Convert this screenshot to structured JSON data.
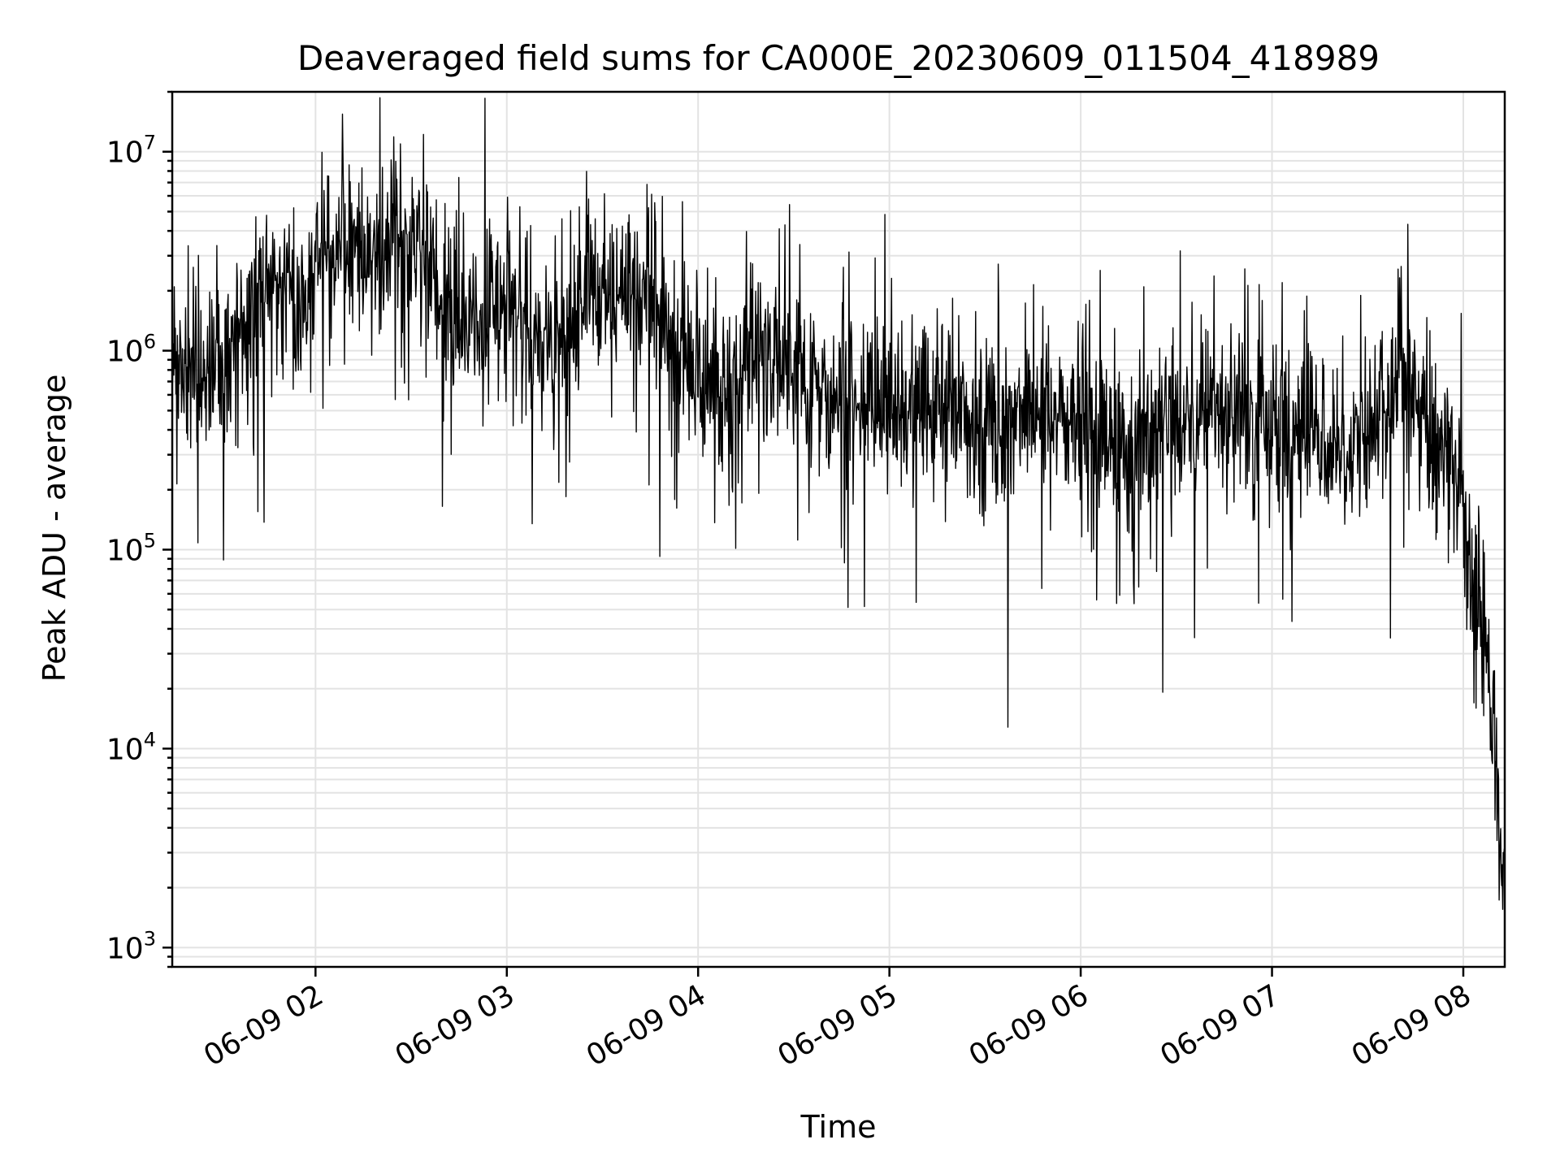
{
  "chart_data": {
    "type": "line",
    "title": "Deaveraged field sums for CA000E_20230609_011504_418989",
    "xlabel": "Time",
    "ylabel": "Peak ADU - average",
    "yscale": "log",
    "ylim": [
      800,
      20000000
    ],
    "xlim": [
      "2023-06-09 01:15:04",
      "2023-06-09 08:13:00"
    ],
    "grid": true,
    "line_color": "#000000",
    "x_ticks": [
      {
        "value": "2023-06-09 02:00",
        "label": "06-09 02"
      },
      {
        "value": "2023-06-09 03:00",
        "label": "06-09 03"
      },
      {
        "value": "2023-06-09 04:00",
        "label": "06-09 04"
      },
      {
        "value": "2023-06-09 05:00",
        "label": "06-09 05"
      },
      {
        "value": "2023-06-09 06:00",
        "label": "06-09 06"
      },
      {
        "value": "2023-06-09 07:00",
        "label": "06-09 07"
      },
      {
        "value": "2023-06-09 08:00",
        "label": "06-09 08"
      }
    ],
    "y_ticks": [
      {
        "value": 1000,
        "base": "10",
        "exp": "3"
      },
      {
        "value": 10000,
        "base": "10",
        "exp": "4"
      },
      {
        "value": 100000,
        "base": "10",
        "exp": "5"
      },
      {
        "value": 1000000,
        "base": "10",
        "exp": "6"
      },
      {
        "value": 10000000,
        "base": "10",
        "exp": "7"
      }
    ],
    "series": [
      {
        "x": [
          "2023-06-09 01:15",
          "2023-06-09 01:20",
          "2023-06-09 01:25",
          "2023-06-09 01:30",
          "2023-06-09 01:35",
          "2023-06-09 01:40",
          "2023-06-09 01:45",
          "2023-06-09 01:50",
          "2023-06-09 01:55",
          "2023-06-09 02:00",
          "2023-06-09 02:05",
          "2023-06-09 02:10",
          "2023-06-09 02:15",
          "2023-06-09 02:20",
          "2023-06-09 02:25",
          "2023-06-09 02:30",
          "2023-06-09 02:35",
          "2023-06-09 02:40",
          "2023-06-09 02:45",
          "2023-06-09 02:50",
          "2023-06-09 02:55",
          "2023-06-09 03:00",
          "2023-06-09 03:05",
          "2023-06-09 03:10",
          "2023-06-09 03:15",
          "2023-06-09 03:20",
          "2023-06-09 03:25",
          "2023-06-09 03:30",
          "2023-06-09 03:35",
          "2023-06-09 03:40",
          "2023-06-09 03:45",
          "2023-06-09 03:50",
          "2023-06-09 03:55",
          "2023-06-09 04:00",
          "2023-06-09 04:05",
          "2023-06-09 04:10",
          "2023-06-09 04:15",
          "2023-06-09 04:20",
          "2023-06-09 04:25",
          "2023-06-09 04:30",
          "2023-06-09 04:35",
          "2023-06-09 04:40",
          "2023-06-09 04:45",
          "2023-06-09 04:50",
          "2023-06-09 04:55",
          "2023-06-09 05:00",
          "2023-06-09 05:05",
          "2023-06-09 05:10",
          "2023-06-09 05:15",
          "2023-06-09 05:20",
          "2023-06-09 05:25",
          "2023-06-09 05:30",
          "2023-06-09 05:35",
          "2023-06-09 05:40",
          "2023-06-09 05:45",
          "2023-06-09 05:50",
          "2023-06-09 05:55",
          "2023-06-09 06:00",
          "2023-06-09 06:05",
          "2023-06-09 06:10",
          "2023-06-09 06:15",
          "2023-06-09 06:20",
          "2023-06-09 06:25",
          "2023-06-09 06:30",
          "2023-06-09 06:35",
          "2023-06-09 06:40",
          "2023-06-09 06:45",
          "2023-06-09 06:50",
          "2023-06-09 06:55",
          "2023-06-09 07:00",
          "2023-06-09 07:05",
          "2023-06-09 07:10",
          "2023-06-09 07:15",
          "2023-06-09 07:20",
          "2023-06-09 07:25",
          "2023-06-09 07:30",
          "2023-06-09 07:35",
          "2023-06-09 07:40",
          "2023-06-09 07:45",
          "2023-06-09 07:50",
          "2023-06-09 07:55",
          "2023-06-09 08:00",
          "2023-06-09 08:03",
          "2023-06-09 08:06",
          "2023-06-09 08:09",
          "2023-06-09 08:11",
          "2023-06-09 08:13"
        ],
        "y": [
          900000,
          1000000,
          800000,
          700000,
          1200000,
          1600000,
          2200000,
          1900000,
          1800000,
          2500000,
          3000000,
          3200000,
          3000000,
          3500000,
          4000000,
          3200000,
          2400000,
          1800000,
          1500000,
          1400000,
          1500000,
          1900000,
          1500000,
          1200000,
          1000000,
          1400000,
          2200000,
          2600000,
          2000000,
          2400000,
          1900000,
          1300000,
          900000,
          700000,
          700000,
          650000,
          800000,
          1200000,
          800000,
          700000,
          600000,
          550000,
          600000,
          500000,
          500000,
          500000,
          550000,
          500000,
          450000,
          550000,
          480000,
          450000,
          420000,
          480000,
          520000,
          480000,
          450000,
          420000,
          380000,
          350000,
          320000,
          330000,
          380000,
          420000,
          450000,
          480000,
          500000,
          480000,
          450000,
          420000,
          380000,
          420000,
          400000,
          350000,
          330000,
          450000,
          550000,
          700000,
          550000,
          380000,
          300000,
          150000,
          80000,
          40000,
          15000,
          4000,
          1500
        ]
      }
    ],
    "noise_amplitude_decades": 0.35
  }
}
